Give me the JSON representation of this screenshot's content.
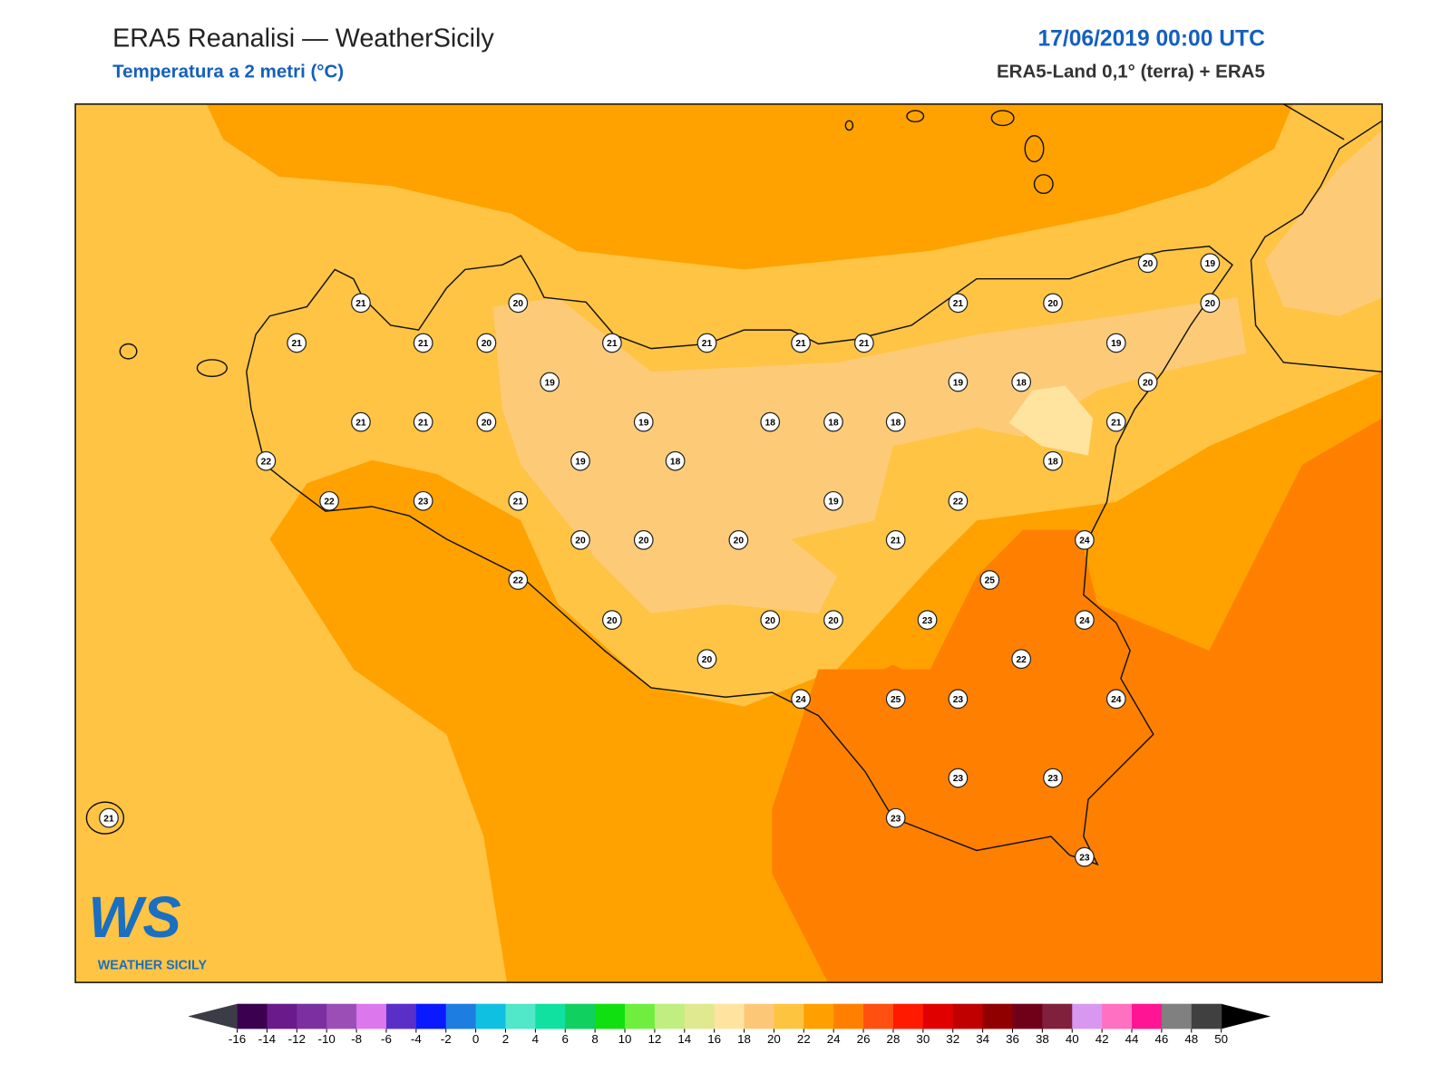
{
  "header": {
    "title": "ERA5 Reanalisi — WeatherSicily",
    "subtitle": "Temperatura a 2 metri (°C)",
    "datetime": "17/06/2019 00:00 UTC",
    "source": "ERA5-Land 0,1° (terra) + ERA5"
  },
  "stations": [
    21,
    20,
    21,
    20,
    20,
    19,
    20,
    21,
    21,
    20,
    21,
    21,
    21,
    21,
    19,
    19,
    19,
    18,
    20,
    21,
    21,
    20,
    19,
    18,
    18,
    18,
    21,
    22,
    19,
    18,
    18,
    22,
    23,
    21,
    19,
    22,
    20,
    20,
    20,
    21,
    24,
    25,
    22,
    20,
    20,
    20,
    23,
    24,
    20,
    22,
    24,
    25,
    23,
    24,
    23,
    23,
    21,
    23,
    23
  ],
  "colorbar": {
    "ticks": [
      -16,
      -14,
      -12,
      -10,
      -8,
      -6,
      -4,
      -2,
      0,
      2,
      4,
      6,
      8,
      10,
      12,
      14,
      16,
      18,
      20,
      22,
      24,
      26,
      28,
      30,
      32,
      34,
      36,
      38,
      40,
      42,
      44,
      46,
      48,
      50
    ],
    "colors": [
      "#3b0050",
      "#6a1a8a",
      "#7b2fa0",
      "#9b4fb6",
      "#dd77ee",
      "#5a2fc8",
      "#0a1aff",
      "#1e7de0",
      "#10c0e0",
      "#50e8c8",
      "#10e0a0",
      "#10d060",
      "#10e010",
      "#70ee40",
      "#c0ee80",
      "#e0e890",
      "#ffe4a0",
      "#fcc878",
      "#fdc440",
      "#ffa000",
      "#ff8000",
      "#ff5010",
      "#ff1a00",
      "#e00000",
      "#c00000",
      "#900000",
      "#700018",
      "#80203c",
      "#d898f0",
      "#ff70c0",
      "#ff1493",
      "#808080",
      "#404040"
    ],
    "under_color": "#3c3c46",
    "over_color": "#000000"
  },
  "logo": {
    "initials": "WS",
    "text": "WEATHER SICILY"
  }
}
